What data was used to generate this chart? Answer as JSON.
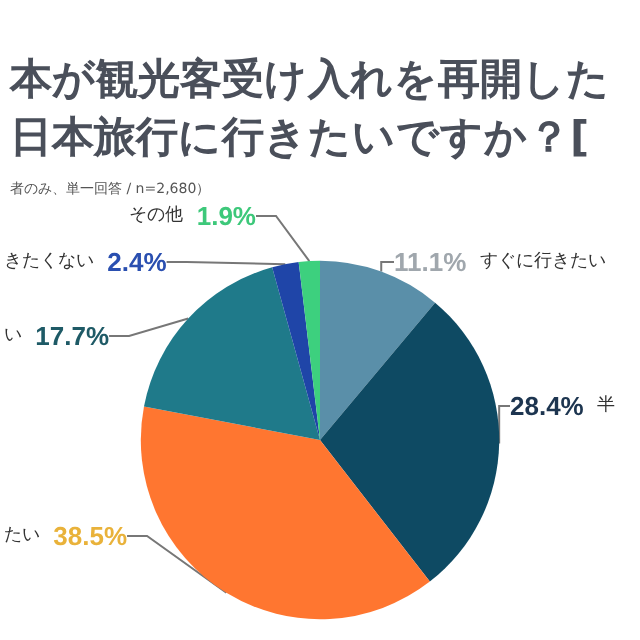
{
  "chart_data": {
    "type": "pie",
    "title": "本が観光客受け入れを再開した日本旅行に行きたいですか？[",
    "subtitle": "者のみ、単一回答 / n=2,680）",
    "categories": [
      "すぐに行きたい",
      "半",
      "たい",
      "い",
      "きたくない",
      "その他"
    ],
    "values": [
      11.1,
      28.4,
      38.5,
      17.7,
      2.4,
      1.9
    ],
    "colors": [
      "#5a8fa9",
      "#0e4a63",
      "#ff7630",
      "#1f7a8a",
      "#1f45a8",
      "#3dd07e"
    ],
    "value_labels": [
      "11.1%",
      "28.4%",
      "38.5%",
      "17.7%",
      "2.4%",
      "1.9%"
    ],
    "legend": false
  }
}
